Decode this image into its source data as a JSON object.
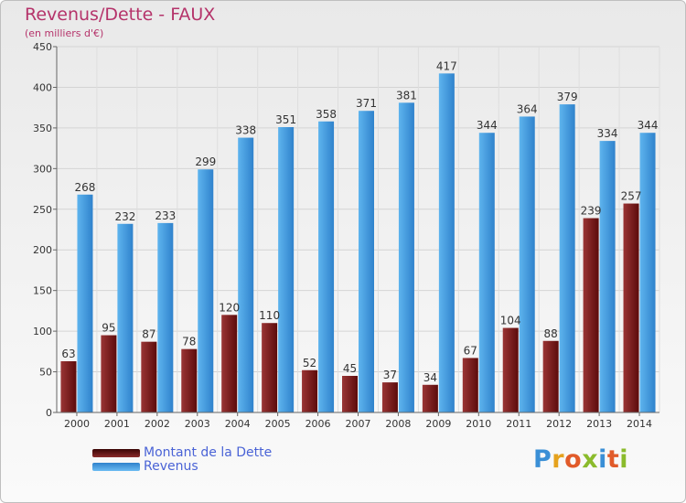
{
  "header": {
    "title": "Revenus/Dette - FAUX",
    "subtitle": "(en milliers d'€)"
  },
  "legend": {
    "items": [
      {
        "label": "Montant de la Dette",
        "color": "#7a1b1b"
      },
      {
        "label": "Revenus",
        "color": "#4aa3e6"
      }
    ]
  },
  "logo": {
    "text": "Proxiti"
  },
  "colors": {
    "dette_dark": "#5c0b0b",
    "dette_light": "#9a3535",
    "revenus_dark": "#2f82cc",
    "revenus_light": "#5eb4ee",
    "title": "#b5336a"
  },
  "chart_data": {
    "type": "bar",
    "title": "Revenus/Dette - FAUX",
    "subtitle": "(en milliers d'€)",
    "categories": [
      "2000",
      "2001",
      "2002",
      "2003",
      "2004",
      "2005",
      "2006",
      "2007",
      "2008",
      "2009",
      "2010",
      "2011",
      "2012",
      "2013",
      "2014"
    ],
    "series": [
      {
        "name": "Montant de la Dette",
        "values": [
          63,
          95,
          87,
          78,
          120,
          110,
          52,
          45,
          37,
          34,
          67,
          104,
          88,
          239,
          257
        ]
      },
      {
        "name": "Revenus",
        "values": [
          268,
          232,
          233,
          299,
          338,
          351,
          358,
          371,
          381,
          417,
          344,
          364,
          379,
          334,
          344
        ]
      }
    ],
    "ylim": [
      0,
      450
    ],
    "yticks": [
      0,
      50,
      100,
      150,
      200,
      250,
      300,
      350,
      400,
      450
    ],
    "grid": true,
    "legend_position": "bottom-left"
  }
}
